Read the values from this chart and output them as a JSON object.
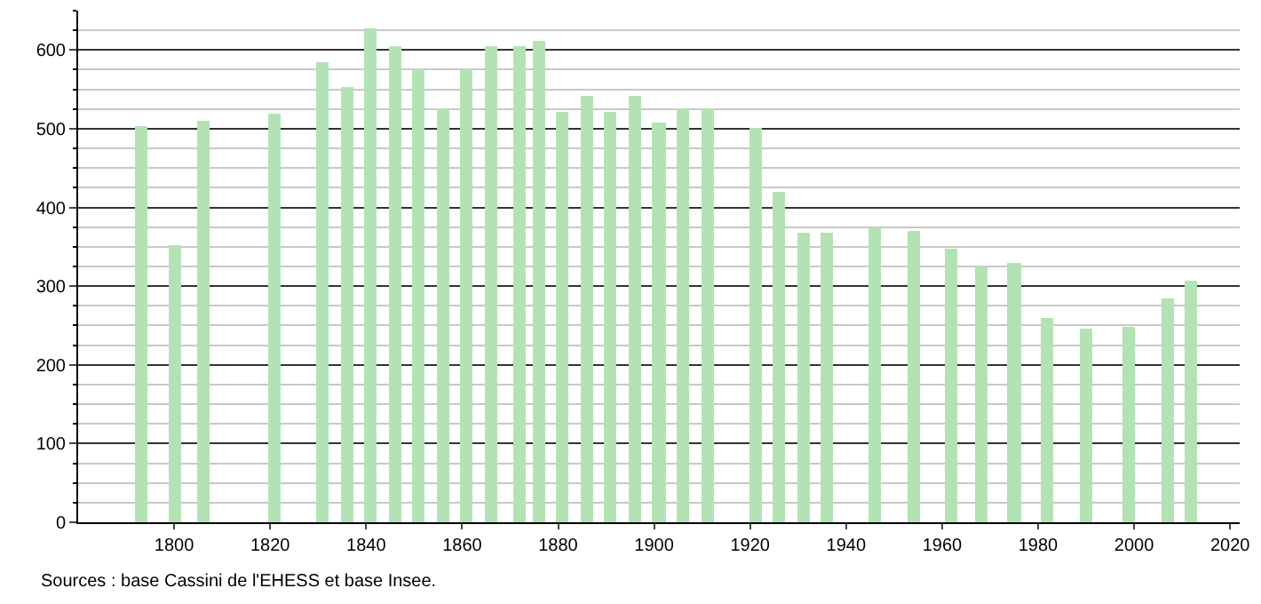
{
  "chart_data": {
    "type": "bar",
    "x": [
      1793,
      1800,
      1806,
      1821,
      1831,
      1836,
      1841,
      1846,
      1851,
      1856,
      1861,
      1866,
      1872,
      1876,
      1881,
      1886,
      1891,
      1896,
      1901,
      1906,
      1911,
      1921,
      1926,
      1931,
      1936,
      1946,
      1954,
      1962,
      1968,
      1975,
      1982,
      1990,
      1999,
      2007,
      2012
    ],
    "values": [
      504,
      351,
      511,
      520,
      585,
      554,
      628,
      605,
      576,
      526,
      576,
      605,
      605,
      612,
      522,
      542,
      522,
      542,
      507,
      525,
      525,
      502,
      419,
      368,
      368,
      375,
      370,
      347,
      326,
      329,
      259,
      245,
      249,
      284,
      307
    ],
    "color": "#b3e3b5",
    "xlim": [
      1780,
      2022
    ],
    "xticks": [
      1800,
      1820,
      1840,
      1860,
      1880,
      1900,
      1920,
      1940,
      1960,
      1980,
      2000,
      2020
    ],
    "ylim": [
      0,
      650
    ],
    "yticks": [
      0,
      {
        "value": 25,
        "label": null
      },
      {
        "value": 50,
        "label": null
      },
      {
        "value": 75,
        "label": null
      },
      100,
      {
        "value": 125,
        "label": null
      },
      {
        "value": 150,
        "label": null
      },
      {
        "value": 175,
        "label": null
      },
      200,
      {
        "value": 225,
        "label": null
      },
      {
        "value": 250,
        "label": null
      },
      {
        "value": 275,
        "label": null
      },
      300,
      {
        "value": 325,
        "label": null
      },
      {
        "value": 350,
        "label": null
      },
      {
        "value": 375,
        "label": null
      },
      400,
      {
        "value": 425,
        "label": null
      },
      {
        "value": 450,
        "label": null
      },
      {
        "value": 475,
        "label": null
      },
      500,
      {
        "value": 525,
        "label": null
      },
      {
        "value": 550,
        "label": null
      },
      {
        "value": 575,
        "label": null
      },
      600,
      {
        "value": 625,
        "label": null
      },
      {
        "value": 650,
        "label": null
      }
    ],
    "grid": "y",
    "annotations": [
      "Sources : base Cassini de l'EHESS et base Insee."
    ]
  }
}
